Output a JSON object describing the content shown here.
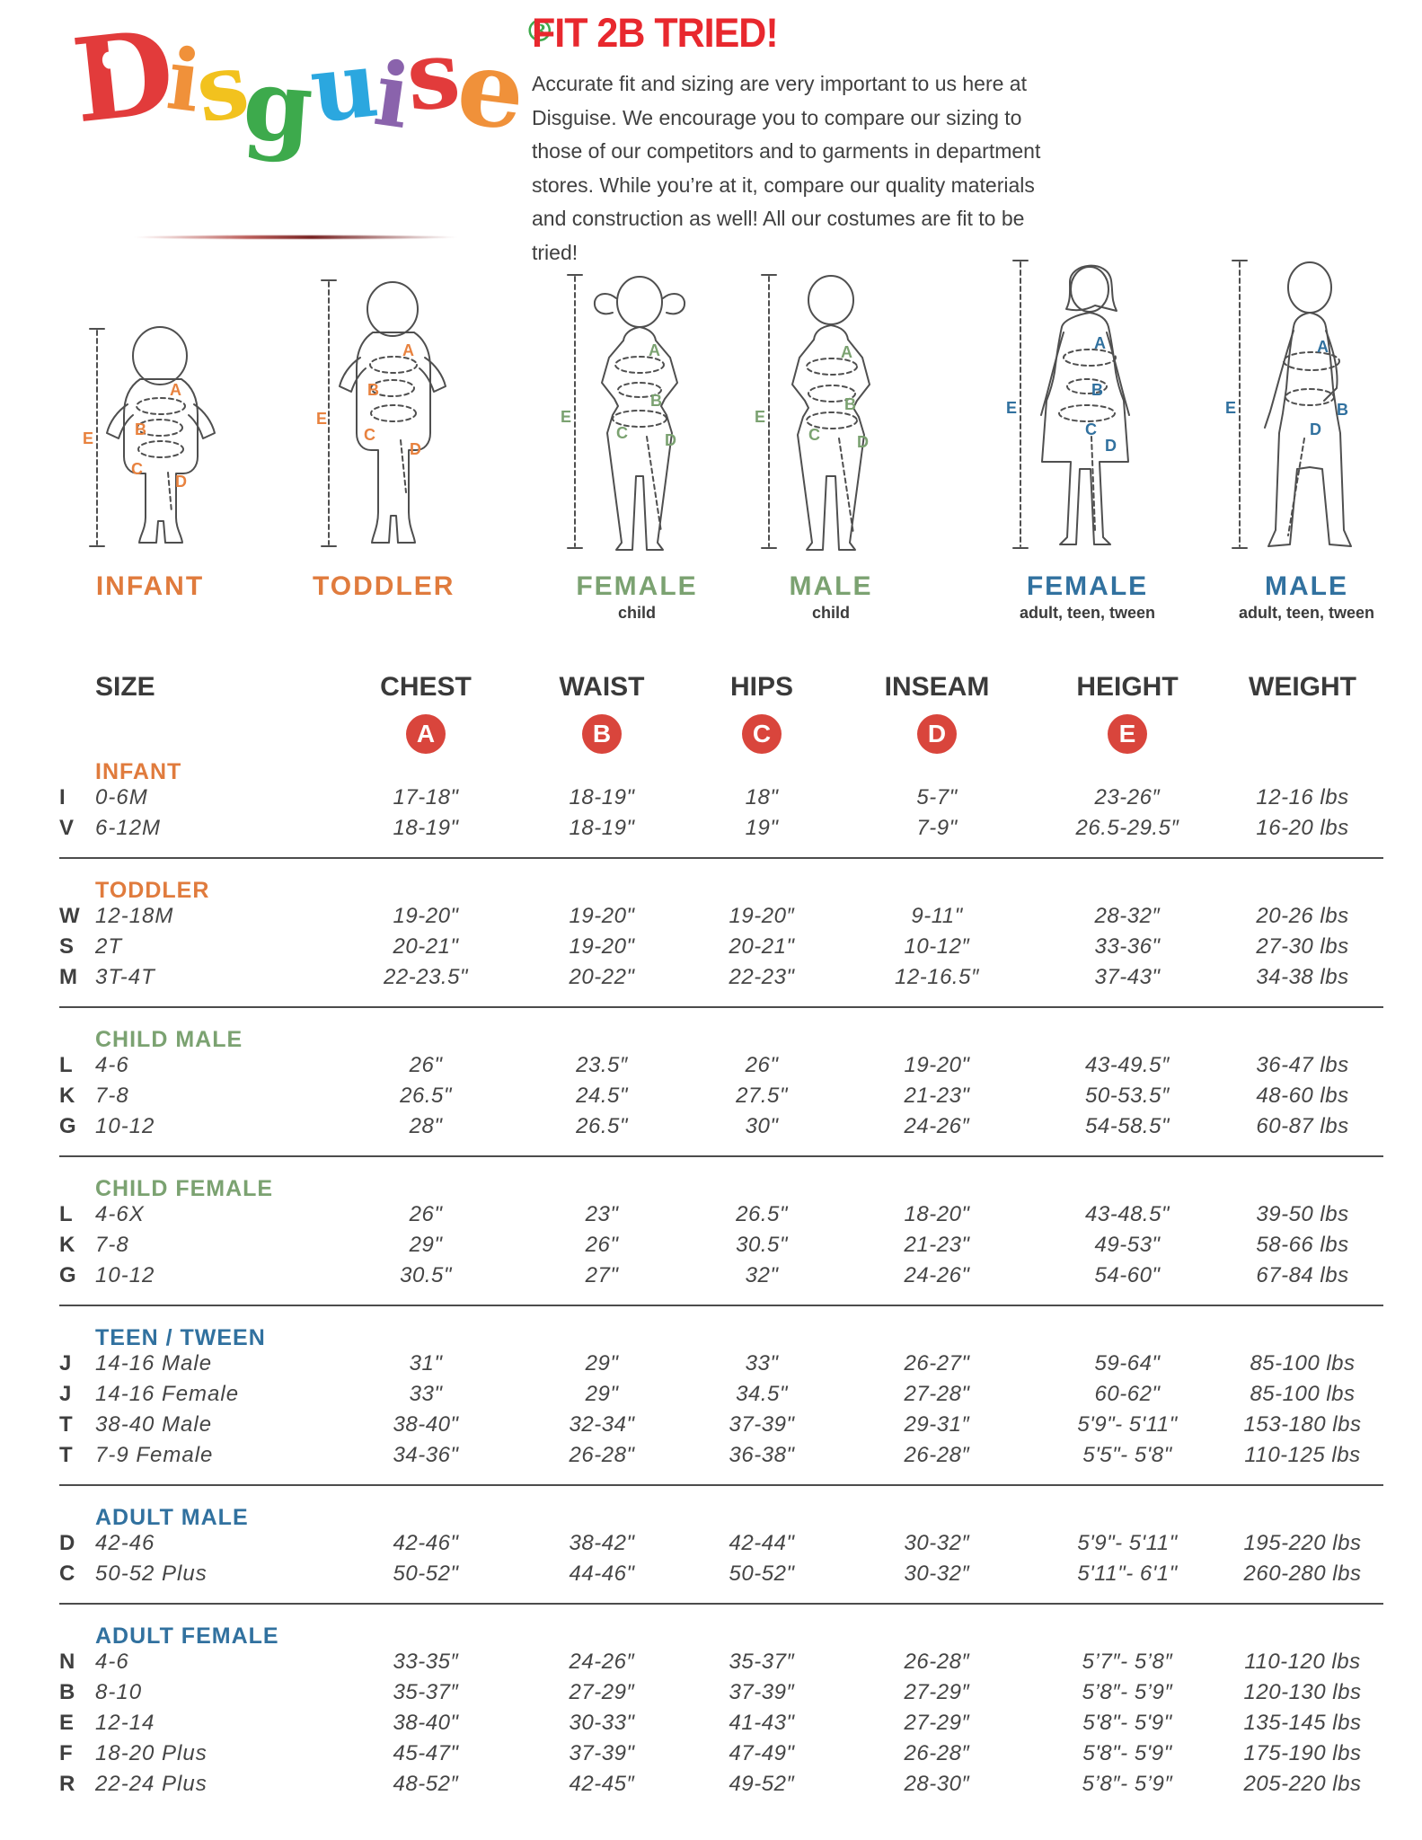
{
  "logo": {
    "letters": [
      {
        "ch": "D",
        "color": "#e23b3b"
      },
      {
        "ch": "i",
        "color": "#f0913a"
      },
      {
        "ch": "s",
        "color": "#f2c21e"
      },
      {
        "ch": "g",
        "color": "#3daa4c"
      },
      {
        "ch": "u",
        "color": "#2ba7df"
      },
      {
        "ch": "i",
        "color": "#8a63ac"
      },
      {
        "ch": "s",
        "color": "#e23b3b"
      },
      {
        "ch": "e",
        "color": "#f0913a"
      }
    ],
    "registered": "®"
  },
  "header": {
    "title": "FIT 2B TRIED!",
    "paragraph": "Accurate fit and sizing are very important to us here at Disguise. We encourage you to compare our sizing to those of our competitors and to garments in department stores. While you’re at it, compare our quality materials and construction as well! All our costumes are fit to be tried!"
  },
  "figures": {
    "letters": {
      "a": "A",
      "b": "B",
      "c": "C",
      "d": "D",
      "e": "E"
    },
    "groups": [
      {
        "caption": "INFANT",
        "subcaption": "",
        "tone": "orange"
      },
      {
        "caption": "TODDLER",
        "subcaption": "",
        "tone": "orange"
      },
      {
        "caption": "FEMALE",
        "subcaption": "child",
        "tone": "green"
      },
      {
        "caption": "MALE",
        "subcaption": "child",
        "tone": "green"
      },
      {
        "caption": "FEMALE",
        "subcaption": "adult, teen, tween",
        "tone": "blue"
      },
      {
        "caption": "MALE",
        "subcaption": "adult, teen, tween",
        "tone": "blue"
      }
    ]
  },
  "table": {
    "columns": [
      "SIZE",
      "CHEST",
      "WAIST",
      "HIPS",
      "INSEAM",
      "HEIGHT",
      "WEIGHT"
    ],
    "badges": [
      "A",
      "B",
      "C",
      "D",
      "E"
    ],
    "badge_color": "#d9453c",
    "sections": [
      {
        "name": "INFANT",
        "tone": "orange",
        "rows": [
          {
            "letter": "I",
            "size": "0-6M",
            "values": [
              "17-18\"",
              "18-19\"",
              "18\"",
              "5-7\"",
              "23-26″",
              "12-16 lbs"
            ]
          },
          {
            "letter": "V",
            "size": "6-12M",
            "values": [
              "18-19\"",
              "18-19\"",
              "19\"",
              "7-9\"",
              "26.5-29.5″",
              "16-20 lbs"
            ]
          }
        ]
      },
      {
        "name": "TODDLER",
        "tone": "orange",
        "rows": [
          {
            "letter": "W",
            "size": "12-18M",
            "values": [
              "19-20\"",
              "19-20\"",
              "19-20″",
              "9-11\"",
              "28-32″",
              "20-26 lbs"
            ]
          },
          {
            "letter": "S",
            "size": "2T",
            "values": [
              "20-21\"",
              "19-20\"",
              "20-21\"",
              "10-12″",
              "33-36\"",
              "27-30 lbs"
            ]
          },
          {
            "letter": "M",
            "size": "3T-4T",
            "values": [
              "22-23.5\"",
              "20-22\"",
              "22-23\"",
              "12-16.5″",
              "37-43\"",
              "34-38 lbs"
            ]
          }
        ]
      },
      {
        "name": "CHILD MALE",
        "tone": "green",
        "rows": [
          {
            "letter": "L",
            "size": "4-6",
            "values": [
              "26\"",
              "23.5″",
              "26\"",
              "19-20\"",
              "43-49.5″",
              "36-47 lbs"
            ]
          },
          {
            "letter": "K",
            "size": "7-8",
            "values": [
              "26.5\"",
              "24.5\"",
              "27.5\"",
              "21-23\"",
              "50-53.5″",
              "48-60 lbs"
            ]
          },
          {
            "letter": "G",
            "size": "10-12",
            "values": [
              "28\"",
              "26.5\"",
              "30\"",
              "24-26″",
              "54-58.5\"",
              "60-87 lbs"
            ]
          }
        ]
      },
      {
        "name": "CHILD FEMALE",
        "tone": "green",
        "rows": [
          {
            "letter": "L",
            "size": "4-6X",
            "values": [
              "26\"",
              "23\"",
              "26.5\"",
              "18-20\"",
              "43-48.5\"",
              "39-50 lbs"
            ]
          },
          {
            "letter": "K",
            "size": "7-8",
            "values": [
              "29\"",
              "26\"",
              "30.5\"",
              "21-23\"",
              "49-53\"",
              "58-66 lbs"
            ]
          },
          {
            "letter": "G",
            "size": "10-12",
            "values": [
              "30.5\"",
              "27\"",
              "32\"",
              "24-26\"",
              "54-60\"",
              "67-84 lbs"
            ]
          }
        ]
      },
      {
        "name": "TEEN / TWEEN",
        "tone": "blue",
        "rows": [
          {
            "letter": "J",
            "size": "14-16 Male",
            "values": [
              "31\"",
              "29\"",
              "33\"",
              "26-27\"",
              "59-64\"",
              "85-100 lbs"
            ]
          },
          {
            "letter": "J",
            "size": "14-16 Female",
            "values": [
              "33\"",
              "29\"",
              "34.5\"",
              "27-28\"",
              "60-62\"",
              "85-100 lbs"
            ]
          },
          {
            "letter": "T",
            "size": "38-40 Male",
            "values": [
              "38-40\"",
              "32-34\"",
              "37-39\"",
              "29-31″",
              "5'9\"- 5'11\"",
              "153-180 lbs"
            ]
          },
          {
            "letter": "T",
            "size": "7-9 Female",
            "values": [
              "34-36\"",
              "26-28\"",
              "36-38\"",
              "26-28″",
              "5'5\"- 5'8\"",
              "110-125 lbs"
            ]
          }
        ]
      },
      {
        "name": "ADULT MALE",
        "tone": "blue",
        "rows": [
          {
            "letter": "D",
            "size": "42-46",
            "values": [
              "42-46\"",
              "38-42\"",
              "42-44\"",
              "30-32″",
              "5'9\"- 5'11\"",
              "195-220 lbs"
            ]
          },
          {
            "letter": "C",
            "size": "50-52 Plus",
            "values": [
              "50-52\"",
              "44-46\"",
              "50-52\"",
              "30-32″",
              "5'11\"- 6'1\"",
              "260-280 lbs"
            ]
          }
        ]
      },
      {
        "name": "ADULT FEMALE",
        "tone": "blue",
        "rows": [
          {
            "letter": "N",
            "size": "4-6",
            "values": [
              "33-35″",
              "24-26″",
              "35-37″",
              "26-28″",
              "5’7″- 5’8″",
              "110-120 lbs"
            ]
          },
          {
            "letter": "B",
            "size": "8-10",
            "values": [
              "35-37″",
              "27-29″",
              "37-39″",
              "27-29″",
              "5’8″- 5’9″",
              "120-130 lbs"
            ]
          },
          {
            "letter": "E",
            "size": "12-14",
            "values": [
              "38-40\"",
              "30-33\"",
              "41-43\"",
              "27-29″",
              "5'8\"- 5'9\"",
              "135-145 lbs"
            ]
          },
          {
            "letter": "F",
            "size": "18-20 Plus",
            "values": [
              "45-47\"",
              "37-39\"",
              "47-49\"",
              "26-28″",
              "5'8\"- 5'9\"",
              "175-190 lbs"
            ]
          },
          {
            "letter": "R",
            "size": "22-24 Plus",
            "values": [
              "48-52″",
              "42-45″",
              "49-52″",
              "28-30″",
              "5’8″- 5’9″",
              "205-220 lbs"
            ]
          }
        ]
      }
    ]
  },
  "colors": {
    "title_red": "#e8282e",
    "badge_red": "#d9453c",
    "orange": "#e07b3d",
    "green": "#7ba271",
    "blue": "#31719f",
    "text": "#3b3b3b"
  }
}
